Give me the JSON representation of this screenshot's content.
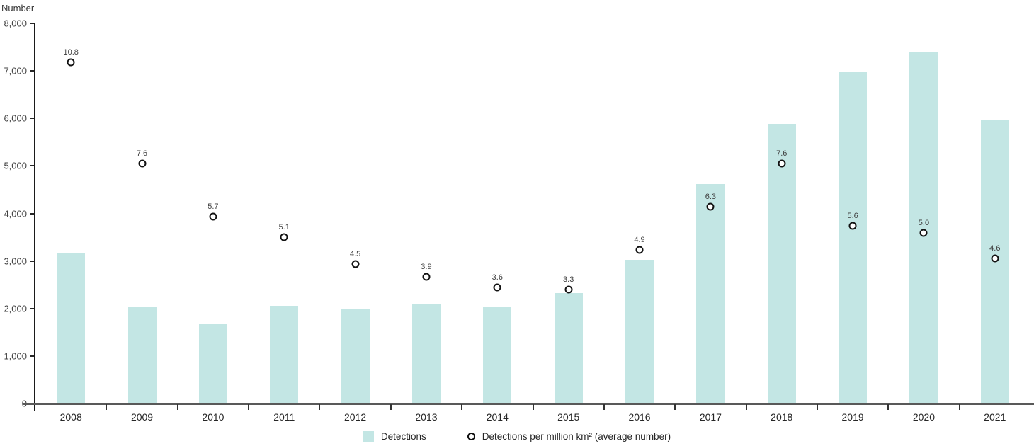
{
  "chart_data": {
    "type": "bar",
    "title": "",
    "ylabel": "Number",
    "xlabel": "",
    "categories": [
      "2008",
      "2009",
      "2010",
      "2011",
      "2012",
      "2013",
      "2014",
      "2015",
      "2016",
      "2017",
      "2018",
      "2019",
      "2020",
      "2021"
    ],
    "series": [
      {
        "name": "Detections",
        "type": "bar",
        "color": "#c3e6e4",
        "values": [
          3180,
          2030,
          1690,
          2060,
          1980,
          2090,
          2040,
          2320,
          3030,
          4620,
          5890,
          6990,
          7390,
          5980
        ]
      },
      {
        "name": "Detections per million km² (average number)",
        "type": "point",
        "marker": "open-circle",
        "marker_stroke_color": "#111111",
        "marker_fill_color": "#ffffff",
        "value_labels": [
          "10.8",
          "7.6",
          "5.7",
          "5.1",
          "4.5",
          "3.9",
          "3.6",
          "3.3",
          "4.9",
          "6.3",
          "7.6",
          "5.6",
          "5.0",
          "4.6"
        ],
        "values": [
          10.8,
          7.6,
          5.7,
          5.1,
          4.5,
          3.9,
          3.6,
          3.3,
          4.9,
          6.3,
          7.6,
          5.6,
          5.0,
          4.6
        ],
        "plotted_on_left_axis": [
          7180,
          5050,
          3940,
          3500,
          2940,
          2670,
          2450,
          2400,
          3230,
          4140,
          5050,
          3740,
          3590,
          3050
        ]
      }
    ],
    "ylim": [
      0,
      8000
    ],
    "y_tick_step": 1000,
    "y_tick_labels": [
      "0",
      "1,000",
      "2,000",
      "3,000",
      "4,000",
      "5,000",
      "6,000",
      "7,000",
      "8,000"
    ],
    "grid": false,
    "legend_position": "bottom"
  }
}
